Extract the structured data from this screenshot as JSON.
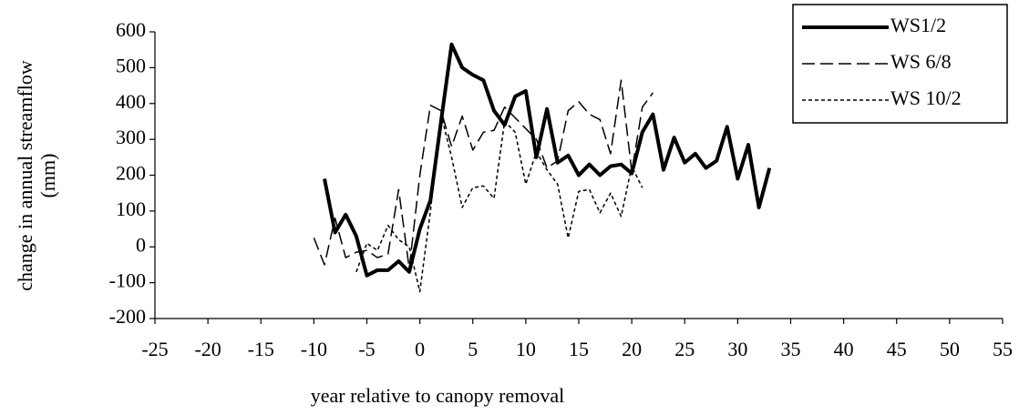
{
  "chart_data": {
    "type": "line",
    "x_label": "year relative to canopy removal",
    "y_label": [
      "change in annual streamflow",
      "(mm)"
    ],
    "xlim": [
      -25,
      55
    ],
    "xticks": [
      -25,
      -20,
      -15,
      -10,
      -5,
      0,
      5,
      10,
      15,
      20,
      25,
      30,
      35,
      40,
      45,
      50,
      55
    ],
    "ylim": [
      -200,
      600
    ],
    "yticks": [
      -200,
      -100,
      0,
      100,
      200,
      300,
      400,
      500,
      600
    ],
    "legend": "top-right",
    "series": [
      {
        "name": "WS1/2",
        "color": "#000000",
        "style": "solid",
        "x": [
          -9,
          -8,
          -7,
          -6,
          -5,
          -4,
          -3,
          -2,
          -1,
          0,
          1,
          2,
          3,
          4,
          5,
          6,
          7,
          8,
          9,
          10,
          11,
          12,
          13,
          14,
          15,
          16,
          17,
          18,
          19,
          20,
          21,
          22,
          23,
          24,
          25,
          26,
          27,
          28,
          29,
          30,
          31,
          32,
          33
        ],
        "values": [
          190,
          40,
          90,
          30,
          -80,
          -65,
          -65,
          -40,
          -70,
          50,
          130,
          350,
          565,
          500,
          480,
          465,
          380,
          340,
          420,
          435,
          250,
          385,
          235,
          255,
          200,
          230,
          200,
          225,
          230,
          205,
          320,
          370,
          215,
          305,
          235,
          260,
          220,
          240,
          335,
          190,
          285,
          110,
          220
        ]
      },
      {
        "name": "WS 6/8",
        "color": "#000000",
        "style": "long-dash",
        "x": [
          -10,
          -9,
          -8,
          -7,
          -6,
          -5,
          -4,
          -3,
          -2,
          -1,
          0,
          1,
          2,
          3,
          4,
          5,
          6,
          7,
          8,
          9,
          10,
          11,
          12,
          13,
          14,
          15,
          16,
          17,
          18,
          19,
          20,
          21,
          22
        ],
        "values": [
          25,
          -50,
          80,
          -30,
          -15,
          -10,
          -30,
          -20,
          160,
          -60,
          200,
          395,
          380,
          280,
          365,
          270,
          320,
          325,
          390,
          360,
          330,
          300,
          220,
          240,
          380,
          405,
          370,
          355,
          260,
          465,
          210,
          390,
          430
        ]
      },
      {
        "name": "WS 10/2",
        "color": "#000000",
        "style": "short-dash",
        "x": [
          -6,
          -5,
          -4,
          -3,
          -2,
          -1,
          0,
          1,
          2,
          3,
          4,
          5,
          6,
          7,
          8,
          9,
          10,
          11,
          12,
          13,
          14,
          15,
          16,
          17,
          18,
          19,
          20,
          21
        ],
        "values": [
          -70,
          10,
          -10,
          60,
          20,
          0,
          -125,
          100,
          370,
          250,
          110,
          165,
          170,
          135,
          350,
          320,
          175,
          265,
          215,
          175,
          25,
          155,
          160,
          95,
          150,
          85,
          225,
          165
        ]
      }
    ]
  }
}
